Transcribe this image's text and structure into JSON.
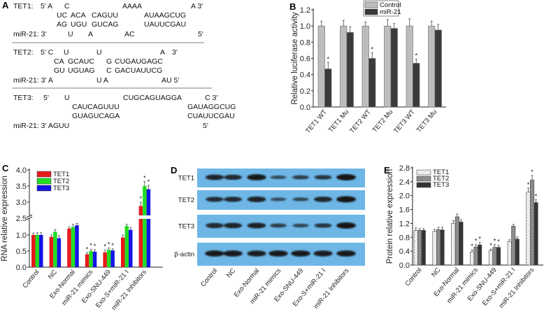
{
  "panel_a": {
    "label": "A",
    "rows": [
      [
        "TET1:",
        "5' A",
        "C",
        "AAAA",
        "A 3'"
      ],
      [
        "UC",
        "ACA",
        "CAGUU",
        "AUAAGCUG"
      ],
      [
        "AG",
        "UGU",
        "GUCAG",
        "UAUUCGAU"
      ],
      [
        "miR-21: 3'",
        "U",
        "A",
        "AC",
        "5'"
      ],
      [
        "TET2:",
        "5' C",
        "U",
        "U",
        "A",
        "3'"
      ],
      [
        "CA",
        "GCAUC",
        "G",
        "CUGAUGAGC"
      ],
      [
        "GU",
        "UGUAG",
        "C",
        "GACUAUUCG"
      ],
      [
        "miR-21: 3' A",
        "U A",
        "AU 5'"
      ],
      [
        "TET3:",
        "5'",
        "U",
        "CUGCAGUAGGA",
        "C 3'"
      ],
      [
        "CAUCAGUUU",
        "GAUAGGCUG"
      ],
      [
        "GUAGUCAGA",
        "CUAUUCGAU"
      ],
      [
        "miR-21: 3' AGUU",
        "5'"
      ]
    ]
  },
  "chart_data": [
    {
      "panel": "B",
      "type": "bar",
      "ylabel": "Relative luciferase activity",
      "ylim": [
        0,
        1.2
      ],
      "yticks": [
        "0.0",
        "0.2",
        "0.4",
        "0.6",
        "0.8",
        "1.0",
        "1.2"
      ],
      "categories": [
        "TET1 WT",
        "TET1 Mu",
        "TET2 WT",
        "TET2 Mu",
        "TET3 WT",
        "TET3 Mu"
      ],
      "legend_position": "top-right",
      "series": [
        {
          "name": "Control",
          "color": "#bdbdbd",
          "values": [
            1.0,
            1.0,
            1.0,
            1.0,
            1.0,
            1.0
          ],
          "errors": [
            0.06,
            0.07,
            0.05,
            0.08,
            0.09,
            0.06
          ],
          "significant": [
            false,
            false,
            false,
            false,
            false,
            false
          ]
        },
        {
          "name": "miR-21",
          "color": "#3a3a3a",
          "values": [
            0.47,
            0.92,
            0.6,
            0.97,
            0.54,
            0.95
          ],
          "errors": [
            0.08,
            0.07,
            0.07,
            0.06,
            0.05,
            0.07
          ],
          "significant": [
            true,
            false,
            true,
            false,
            true,
            false
          ]
        }
      ],
      "star": "*"
    },
    {
      "panel": "C",
      "type": "bar",
      "ylabel": "RNA relative expression",
      "ylim": [
        0,
        4.0
      ],
      "axis_break": [
        1.5,
        2.5
      ],
      "yticks": [
        "0.0",
        "0.5",
        "1.0",
        "2.5",
        "3.0",
        "3.5",
        "4.0"
      ],
      "categories": [
        "Control",
        "NC",
        "Exo-Normal",
        "miR-21 mimics",
        "Exo-SNU-449",
        "Exo-S+miR-21 I",
        "miR-21 Inhibitors"
      ],
      "legend_position": "top-left",
      "series": [
        {
          "name": "TET1",
          "color": "#e8191b",
          "values": [
            1.0,
            0.94,
            1.2,
            0.4,
            0.46,
            0.92,
            2.88
          ],
          "errors": [
            0.06,
            0.06,
            0.05,
            0.05,
            0.07,
            0.08,
            0.12
          ],
          "significant": [
            false,
            false,
            false,
            true,
            true,
            false,
            true
          ]
        },
        {
          "name": "TET2",
          "color": "#22dd22",
          "values": [
            1.0,
            1.1,
            1.25,
            0.5,
            0.54,
            1.28,
            3.5
          ],
          "errors": [
            0.07,
            0.07,
            0.08,
            0.06,
            0.06,
            0.05,
            0.14
          ],
          "significant": [
            false,
            false,
            false,
            true,
            true,
            false,
            true
          ]
        },
        {
          "name": "TET3",
          "color": "#1414e6",
          "values": [
            1.0,
            0.9,
            1.3,
            0.48,
            0.52,
            1.16,
            3.4
          ],
          "errors": [
            0.07,
            0.08,
            0.06,
            0.06,
            0.05,
            0.07,
            0.12
          ],
          "significant": [
            false,
            false,
            false,
            true,
            true,
            false,
            true
          ]
        }
      ],
      "star": "*"
    },
    {
      "panel": "E",
      "type": "bar",
      "ylabel": "Protein relative expression",
      "ylim": [
        0,
        2.8
      ],
      "yticks": [
        "0.0",
        "0.4",
        "0.8",
        "1.2",
        "1.6",
        "2.0",
        "2.4",
        "2.8"
      ],
      "categories": [
        "Control",
        "NC",
        "Exo-Normal",
        "miR-21 mimics",
        "Exo-SNU-449",
        "Exo-S+miR-21 I",
        "miR-21 Inhibitors"
      ],
      "legend_position": "top-left",
      "series": [
        {
          "name": "TET1",
          "color": "#ffffff",
          "pattern": "sparse-hatch",
          "values": [
            1.0,
            0.97,
            1.2,
            0.38,
            0.42,
            0.68,
            2.1
          ],
          "errors": [
            0.07,
            0.06,
            0.08,
            0.06,
            0.04,
            0.05,
            0.12
          ],
          "significant": [
            false,
            false,
            false,
            true,
            true,
            false,
            true
          ]
        },
        {
          "name": "TET2",
          "color": "#8a8a8a",
          "pattern": "dense-hatch",
          "values": [
            1.0,
            1.02,
            1.39,
            0.52,
            0.51,
            1.12,
            2.45
          ],
          "errors": [
            0.05,
            0.07,
            0.08,
            0.07,
            0.08,
            0.05,
            0.13
          ],
          "significant": [
            false,
            false,
            false,
            true,
            true,
            false,
            true
          ]
        },
        {
          "name": "TET3",
          "color": "#333333",
          "pattern": "crosshatch",
          "values": [
            1.0,
            1.01,
            1.24,
            0.58,
            0.51,
            0.75,
            1.8
          ],
          "errors": [
            0.05,
            0.08,
            0.07,
            0.07,
            0.06,
            0.06,
            0.08
          ],
          "significant": [
            false,
            false,
            false,
            true,
            true,
            false,
            true
          ]
        }
      ],
      "star": "*"
    }
  ],
  "panel_b": {
    "label": "B"
  },
  "panel_c": {
    "label": "C"
  },
  "panel_e": {
    "label": "E"
  },
  "panel_d": {
    "label": "D",
    "blot_color": "#6db6e6",
    "rows": [
      {
        "label": "TET1",
        "intensity": [
          0.8,
          0.75,
          0.95,
          0.35,
          0.5,
          0.6,
          1.0
        ]
      },
      {
        "label": "TET2",
        "intensity": [
          0.7,
          0.75,
          0.85,
          0.35,
          0.4,
          0.8,
          1.0
        ]
      },
      {
        "label": "TET3",
        "intensity": [
          0.75,
          0.8,
          0.85,
          0.5,
          0.4,
          0.6,
          1.0
        ]
      },
      {
        "label": "β-actin",
        "intensity": [
          0.95,
          0.95,
          0.9,
          0.95,
          0.95,
          0.9,
          0.95
        ]
      }
    ],
    "lanes": [
      "Control",
      "NC",
      "Exo-Normal",
      "miR-21 mimics",
      "Exo-SNU-449",
      "Exo-S+miR-21 I",
      "miR-21 Inhibitors"
    ]
  }
}
